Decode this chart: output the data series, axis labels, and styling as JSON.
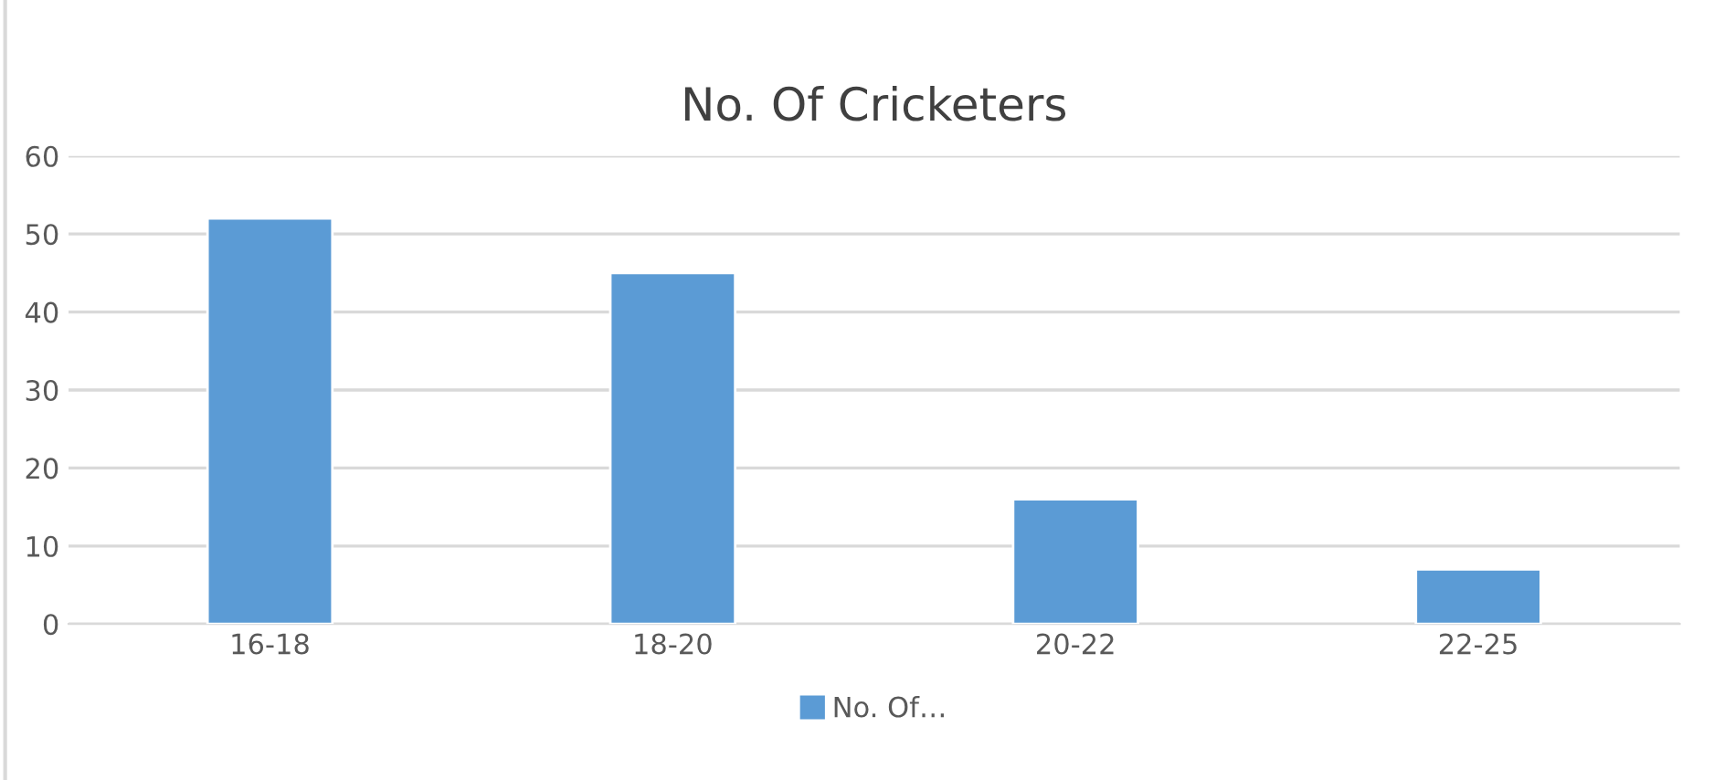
{
  "chart_data": {
    "type": "bar",
    "title": "No. Of Cricketers",
    "categories": [
      "16-18",
      "18-20",
      "20-22",
      "22-25"
    ],
    "series": [
      {
        "name": "No. Of…",
        "color": "#5b9bd5",
        "values": [
          52,
          45,
          16,
          7
        ]
      }
    ],
    "ylim": [
      0,
      60
    ],
    "yticks": [
      0,
      10,
      20,
      30,
      40,
      50,
      60
    ],
    "grid": "y",
    "legend": "bottom"
  }
}
